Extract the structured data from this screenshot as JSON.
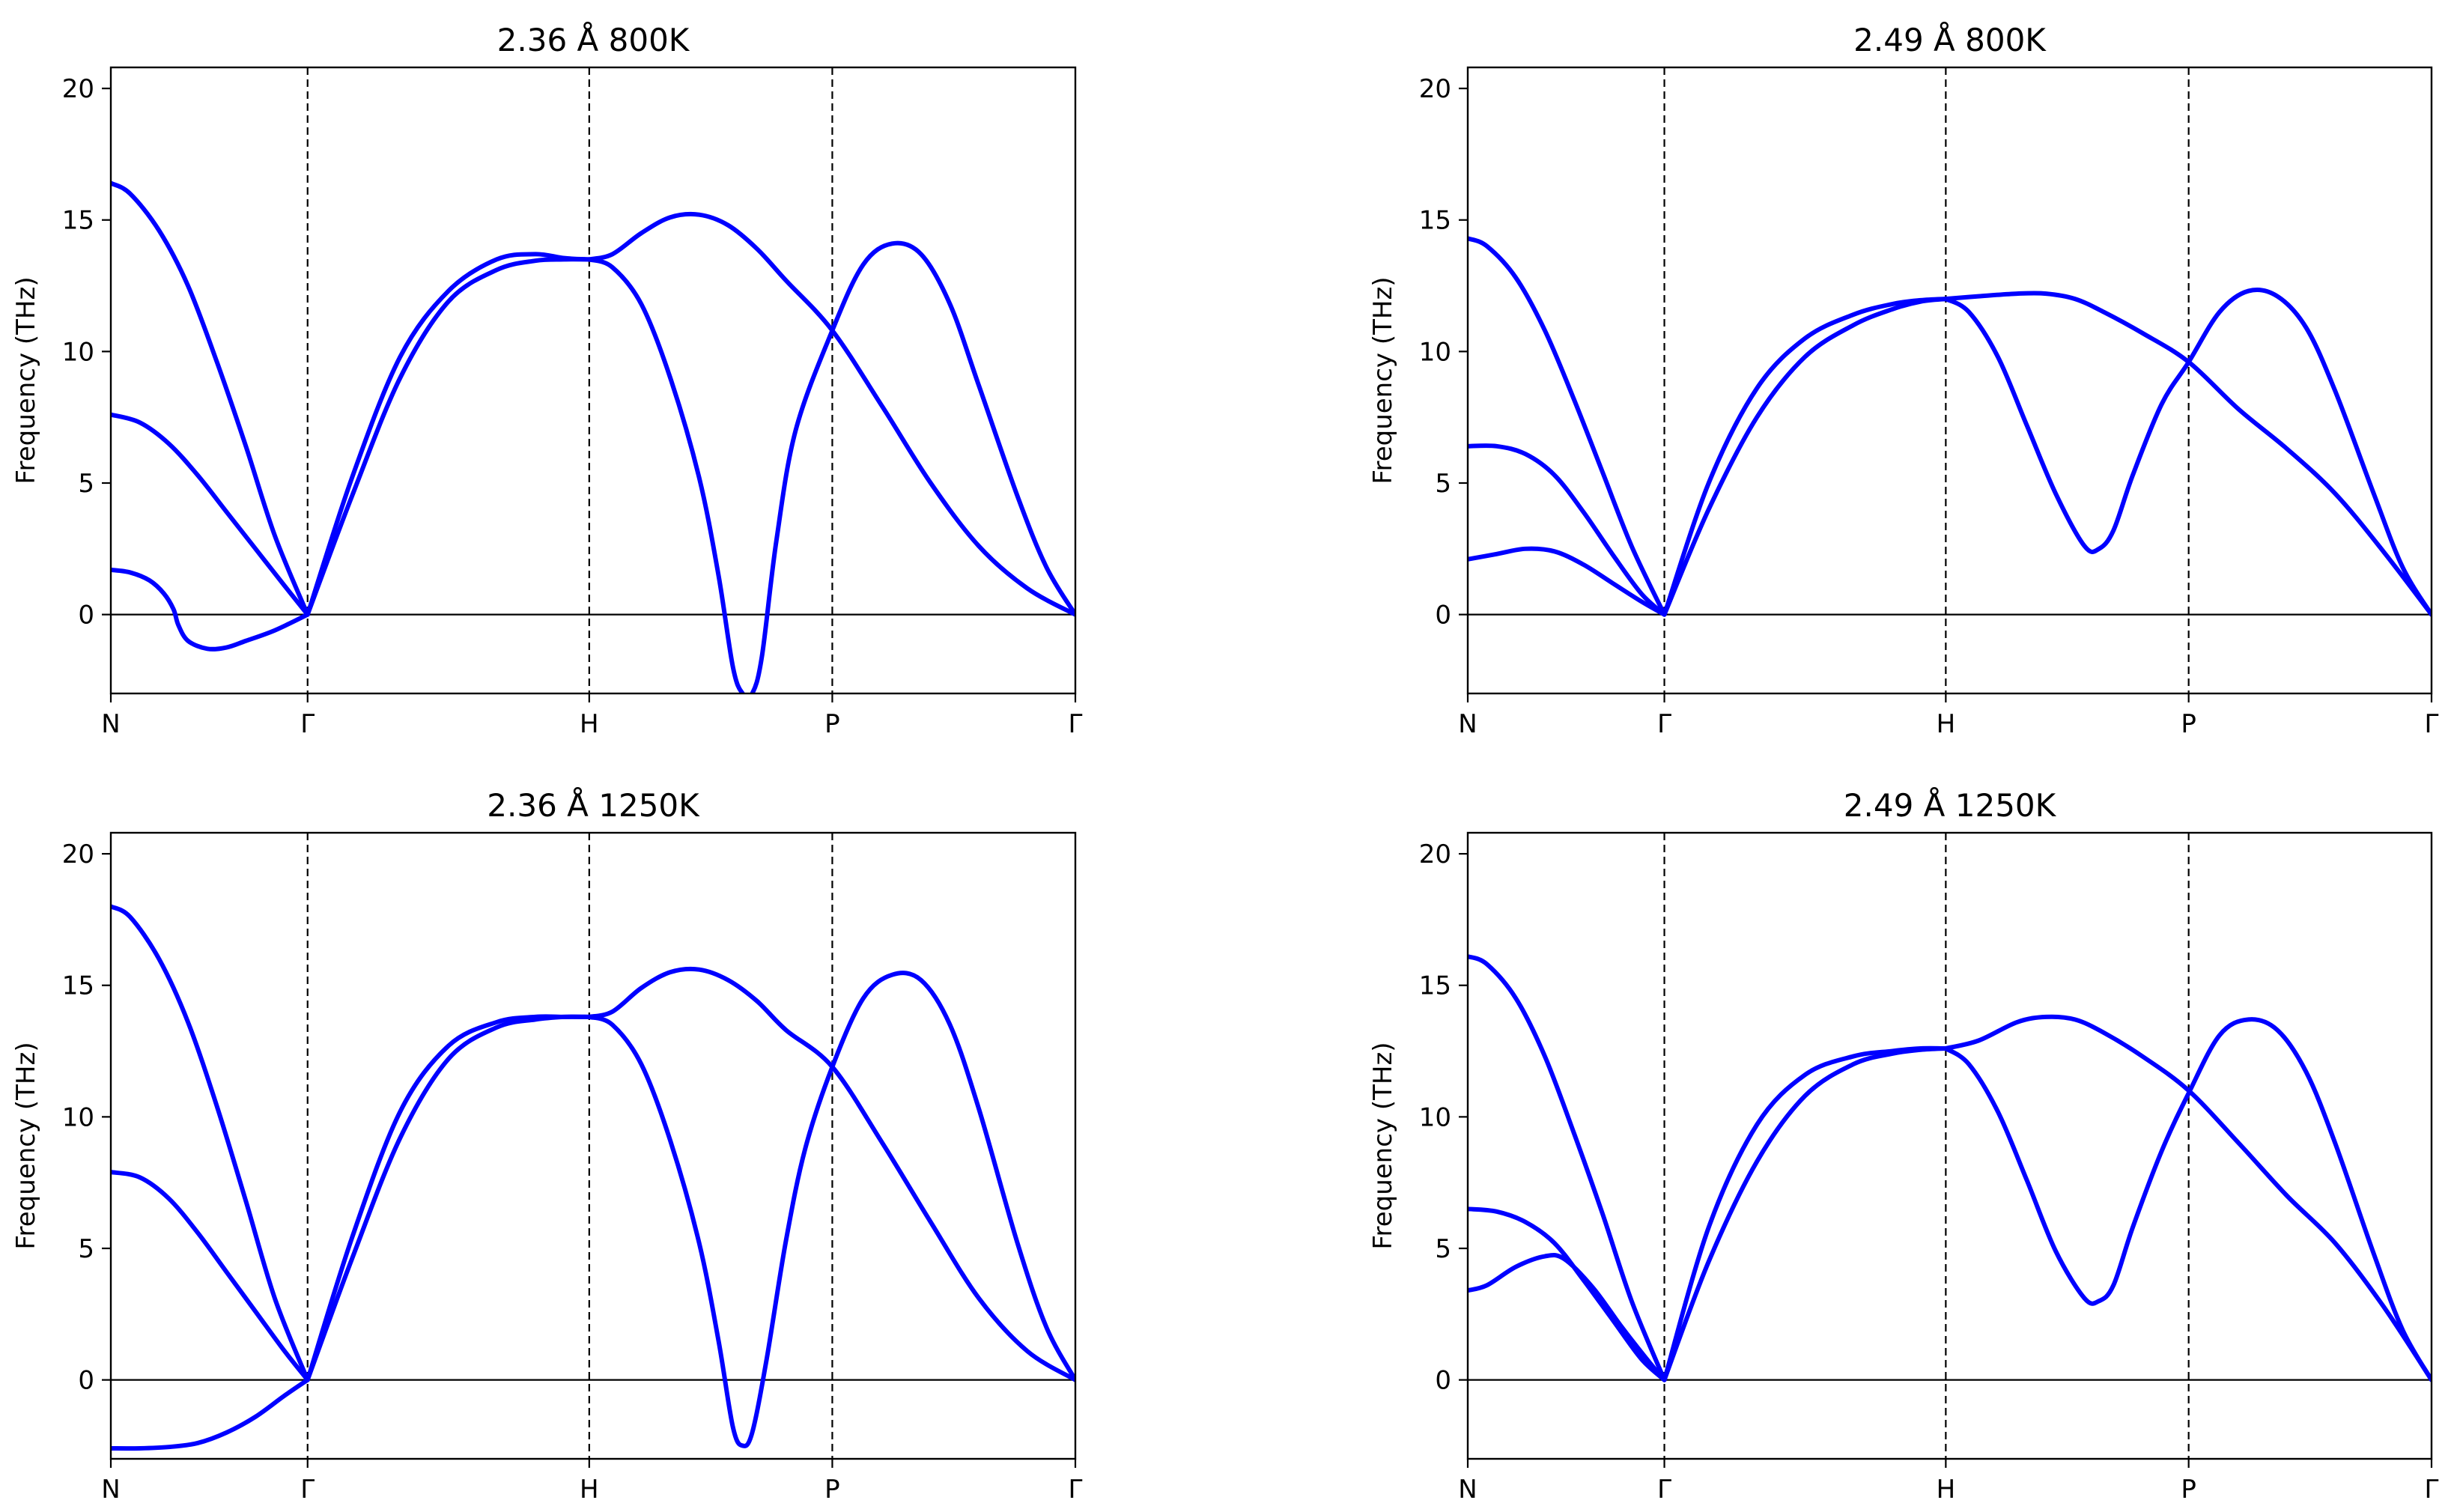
{
  "chart_data": [
    {
      "type": "line",
      "title": "2.36 Å  800K",
      "ylabel": "Frequency (THz)",
      "xlabel": "",
      "ylim": [
        -3,
        20.8
      ],
      "yticks": [
        0,
        5,
        10,
        15,
        20
      ],
      "x_ticklabels": [
        "N",
        "Γ",
        "H",
        "P",
        "Γ"
      ],
      "x_tick_positions": [
        0,
        0.204,
        0.496,
        0.748,
        1.0
      ],
      "grid": false,
      "color": "#0000ff",
      "series": [
        {
          "x": [
            0,
            0.02,
            0.05,
            0.08,
            0.11,
            0.14,
            0.17,
            0.204
          ],
          "values": [
            16.4,
            16.0,
            14.6,
            12.5,
            9.6,
            6.4,
            3.0,
            0
          ]
        },
        {
          "x": [
            0,
            0.03,
            0.06,
            0.09,
            0.12,
            0.15,
            0.18,
            0.204
          ],
          "values": [
            7.6,
            7.3,
            6.5,
            5.3,
            3.9,
            2.5,
            1.1,
            0
          ]
        },
        {
          "x": [
            0,
            0.02,
            0.04,
            0.055,
            0.065,
            0.07,
            0.08,
            0.1,
            0.12,
            0.14,
            0.17,
            0.204
          ],
          "values": [
            1.7,
            1.6,
            1.3,
            0.8,
            0.2,
            -0.4,
            -1.0,
            -1.3,
            -1.25,
            -1.0,
            -0.6,
            0
          ]
        },
        {
          "x": [
            0.204,
            0.25,
            0.3,
            0.35,
            0.4,
            0.44,
            0.47,
            0.496
          ],
          "values": [
            0,
            5.2,
            9.8,
            12.3,
            13.5,
            13.7,
            13.55,
            13.5
          ]
        },
        {
          "x": [
            0.204,
            0.25,
            0.3,
            0.35,
            0.4,
            0.44,
            0.47,
            0.496
          ],
          "values": [
            0,
            4.5,
            9.0,
            11.9,
            13.1,
            13.45,
            13.5,
            13.5
          ]
        },
        {
          "x": [
            0.496,
            0.52,
            0.55,
            0.58,
            0.61,
            0.64,
            0.67,
            0.7,
            0.748,
            0.8,
            0.85,
            0.9,
            0.95,
            1.0
          ],
          "values": [
            13.5,
            13.7,
            14.5,
            15.1,
            15.2,
            14.8,
            13.9,
            12.7,
            10.8,
            7.9,
            5.0,
            2.6,
            1.0,
            0
          ]
        },
        {
          "x": [
            0.496,
            0.52,
            0.55,
            0.58,
            0.61,
            0.63,
            0.645,
            0.655,
            0.665,
            0.675,
            0.69,
            0.71,
            0.748,
            0.78,
            0.81,
            0.84,
            0.87,
            0.9,
            0.94,
            0.97,
            1.0
          ],
          "values": [
            13.5,
            13.2,
            11.8,
            9.0,
            5.2,
            1.5,
            -2.0,
            -3.0,
            -3.0,
            -1.6,
            2.8,
            7.0,
            10.8,
            13.3,
            14.1,
            13.7,
            11.8,
            8.7,
            4.5,
            1.8,
            0
          ]
        }
      ]
    },
    {
      "type": "line",
      "title": "2.49 Å  800K",
      "ylabel": "Frequency (THz)",
      "xlabel": "",
      "ylim": [
        -3,
        20.8
      ],
      "yticks": [
        0,
        5,
        10,
        15,
        20
      ],
      "x_ticklabels": [
        "N",
        "Γ",
        "H",
        "P",
        "Γ"
      ],
      "x_tick_positions": [
        0,
        0.204,
        0.496,
        0.748,
        1.0
      ],
      "grid": false,
      "color": "#0000ff",
      "series": [
        {
          "x": [
            0,
            0.02,
            0.05,
            0.08,
            0.11,
            0.14,
            0.17,
            0.204
          ],
          "values": [
            14.3,
            14.0,
            12.8,
            10.8,
            8.2,
            5.4,
            2.6,
            0
          ]
        },
        {
          "x": [
            0,
            0.03,
            0.06,
            0.09,
            0.12,
            0.15,
            0.18,
            0.204
          ],
          "values": [
            6.4,
            6.4,
            6.1,
            5.3,
            3.9,
            2.3,
            0.8,
            0
          ]
        },
        {
          "x": [
            0,
            0.03,
            0.06,
            0.09,
            0.12,
            0.15,
            0.18,
            0.204
          ],
          "values": [
            2.1,
            2.3,
            2.5,
            2.4,
            1.9,
            1.2,
            0.5,
            0
          ]
        },
        {
          "x": [
            0.204,
            0.25,
            0.3,
            0.35,
            0.4,
            0.44,
            0.47,
            0.496
          ],
          "values": [
            0,
            5.0,
            8.6,
            10.5,
            11.4,
            11.8,
            11.95,
            12.0
          ]
        },
        {
          "x": [
            0.204,
            0.25,
            0.3,
            0.35,
            0.4,
            0.44,
            0.47,
            0.496
          ],
          "values": [
            0,
            4.0,
            7.5,
            9.8,
            11.0,
            11.6,
            11.9,
            12.0
          ]
        },
        {
          "x": [
            0.496,
            0.53,
            0.57,
            0.6,
            0.63,
            0.66,
            0.7,
            0.748,
            0.8,
            0.85,
            0.9,
            0.95,
            1.0
          ],
          "values": [
            12.0,
            12.1,
            12.2,
            12.2,
            12.0,
            11.5,
            10.7,
            9.6,
            7.8,
            6.3,
            4.6,
            2.4,
            0
          ]
        },
        {
          "x": [
            0.496,
            0.52,
            0.55,
            0.58,
            0.61,
            0.64,
            0.655,
            0.67,
            0.69,
            0.72,
            0.748,
            0.78,
            0.81,
            0.84,
            0.87,
            0.9,
            0.94,
            0.97,
            1.0
          ],
          "values": [
            12.0,
            11.5,
            9.8,
            7.2,
            4.6,
            2.6,
            2.5,
            3.2,
            5.3,
            8.0,
            9.6,
            11.5,
            12.3,
            12.1,
            10.9,
            8.5,
            4.6,
            1.8,
            0
          ]
        }
      ]
    },
    {
      "type": "line",
      "title": "2.36 Å  1250K",
      "ylabel": "Frequency (THz)",
      "xlabel": "",
      "ylim": [
        -3,
        20.8
      ],
      "yticks": [
        0,
        5,
        10,
        15,
        20
      ],
      "x_ticklabels": [
        "N",
        "Γ",
        "H",
        "P",
        "Γ"
      ],
      "x_tick_positions": [
        0,
        0.204,
        0.496,
        0.748,
        1.0
      ],
      "grid": false,
      "color": "#0000ff",
      "series": [
        {
          "x": [
            0,
            0.02,
            0.05,
            0.08,
            0.11,
            0.14,
            0.17,
            0.204
          ],
          "values": [
            18.0,
            17.6,
            16.0,
            13.6,
            10.4,
            6.8,
            3.1,
            0
          ]
        },
        {
          "x": [
            0,
            0.03,
            0.06,
            0.09,
            0.12,
            0.15,
            0.18,
            0.204
          ],
          "values": [
            7.9,
            7.7,
            6.9,
            5.6,
            4.1,
            2.6,
            1.1,
            0
          ]
        },
        {
          "x": [
            0,
            0.03,
            0.06,
            0.09,
            0.12,
            0.15,
            0.18,
            0.204
          ],
          "values": [
            -2.6,
            -2.6,
            -2.55,
            -2.4,
            -2.0,
            -1.4,
            -0.6,
            0
          ]
        },
        {
          "x": [
            0.204,
            0.25,
            0.3,
            0.35,
            0.4,
            0.44,
            0.47,
            0.496
          ],
          "values": [
            0,
            5.4,
            10.2,
            12.7,
            13.6,
            13.8,
            13.8,
            13.8
          ]
        },
        {
          "x": [
            0.204,
            0.25,
            0.3,
            0.35,
            0.4,
            0.44,
            0.47,
            0.496
          ],
          "values": [
            0,
            4.6,
            9.2,
            12.2,
            13.4,
            13.7,
            13.8,
            13.8
          ]
        },
        {
          "x": [
            0.496,
            0.52,
            0.55,
            0.58,
            0.61,
            0.64,
            0.67,
            0.7,
            0.748,
            0.8,
            0.85,
            0.9,
            0.95,
            1.0
          ],
          "values": [
            13.8,
            14.0,
            14.9,
            15.5,
            15.6,
            15.2,
            14.4,
            13.3,
            11.9,
            9.0,
            6.0,
            3.1,
            1.1,
            0
          ]
        },
        {
          "x": [
            0.496,
            0.52,
            0.55,
            0.58,
            0.61,
            0.63,
            0.645,
            0.655,
            0.665,
            0.68,
            0.7,
            0.72,
            0.748,
            0.78,
            0.81,
            0.84,
            0.87,
            0.9,
            0.94,
            0.97,
            1.0
          ],
          "values": [
            13.8,
            13.5,
            12.0,
            9.1,
            5.2,
            1.5,
            -1.8,
            -2.5,
            -2.0,
            0.8,
            5.3,
            8.8,
            11.9,
            14.5,
            15.4,
            15.2,
            13.5,
            10.3,
            5.2,
            2.0,
            0
          ]
        }
      ]
    },
    {
      "type": "line",
      "title": "2.49 Å  1250K",
      "ylabel": "Frequency (THz)",
      "xlabel": "",
      "ylim": [
        -3,
        20.8
      ],
      "yticks": [
        0,
        5,
        10,
        15,
        20
      ],
      "x_ticklabels": [
        "N",
        "Γ",
        "H",
        "P",
        "Γ"
      ],
      "x_tick_positions": [
        0,
        0.204,
        0.496,
        0.748,
        1.0
      ],
      "grid": false,
      "color": "#0000ff",
      "series": [
        {
          "x": [
            0,
            0.02,
            0.05,
            0.08,
            0.11,
            0.14,
            0.17,
            0.204
          ],
          "values": [
            16.1,
            15.8,
            14.5,
            12.3,
            9.4,
            6.3,
            3.0,
            0
          ]
        },
        {
          "x": [
            0,
            0.03,
            0.06,
            0.09,
            0.12,
            0.15,
            0.18,
            0.204
          ],
          "values": [
            6.5,
            6.4,
            6.0,
            5.2,
            3.8,
            2.3,
            0.8,
            0
          ]
        },
        {
          "x": [
            0,
            0.02,
            0.05,
            0.08,
            0.1,
            0.13,
            0.16,
            0.19,
            0.204
          ],
          "values": [
            3.4,
            3.6,
            4.3,
            4.7,
            4.6,
            3.5,
            2.0,
            0.6,
            0
          ]
        },
        {
          "x": [
            0.204,
            0.25,
            0.3,
            0.35,
            0.4,
            0.44,
            0.47,
            0.496
          ],
          "values": [
            0,
            5.8,
            9.7,
            11.6,
            12.3,
            12.5,
            12.6,
            12.6
          ]
        },
        {
          "x": [
            0.204,
            0.25,
            0.3,
            0.35,
            0.4,
            0.44,
            0.47,
            0.496
          ],
          "values": [
            0,
            4.5,
            8.3,
            10.8,
            12.0,
            12.4,
            12.55,
            12.6
          ]
        },
        {
          "x": [
            0.496,
            0.53,
            0.57,
            0.6,
            0.63,
            0.66,
            0.7,
            0.748,
            0.8,
            0.85,
            0.9,
            0.95,
            1.0
          ],
          "values": [
            12.6,
            12.9,
            13.6,
            13.8,
            13.7,
            13.2,
            12.3,
            11.0,
            9.0,
            7.0,
            5.2,
            2.8,
            0
          ]
        },
        {
          "x": [
            0.496,
            0.52,
            0.55,
            0.58,
            0.61,
            0.64,
            0.655,
            0.67,
            0.69,
            0.72,
            0.748,
            0.78,
            0.81,
            0.84,
            0.87,
            0.9,
            0.94,
            0.97,
            1.0
          ],
          "values": [
            12.6,
            12.0,
            10.2,
            7.6,
            4.9,
            3.1,
            3.0,
            3.6,
            5.8,
            8.7,
            10.9,
            13.1,
            13.7,
            13.3,
            11.7,
            9.0,
            4.8,
            1.9,
            0
          ]
        }
      ]
    }
  ]
}
